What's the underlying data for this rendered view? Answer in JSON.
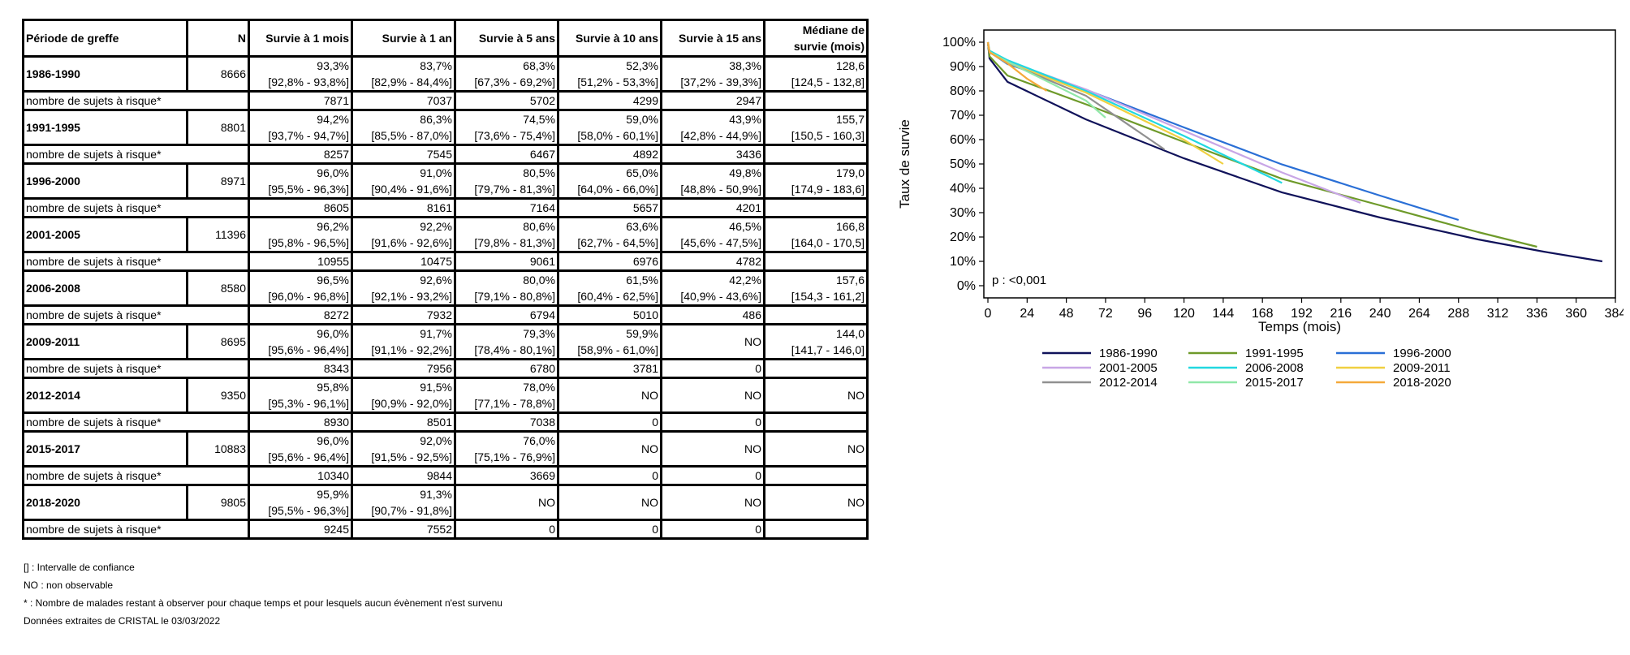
{
  "table": {
    "headers": [
      "Période de greffe",
      "N",
      "Survie à 1 mois",
      "Survie à 1 an",
      "Survie à 5 ans",
      "Survie à 10 ans",
      "Survie à 15 ans",
      "Médiane de survie (mois)"
    ],
    "risk_label": "nombre de sujets à risque*",
    "periods": [
      {
        "period": "1986-1990",
        "n": "8666",
        "cells": [
          [
            "93,3%",
            "[92,8% - 93,8%]"
          ],
          [
            "83,7%",
            "[82,9% - 84,4%]"
          ],
          [
            "68,3%",
            "[67,3% - 69,2%]"
          ],
          [
            "52,3%",
            "[51,2% - 53,3%]"
          ],
          [
            "38,3%",
            "[37,2% - 39,3%]"
          ],
          [
            "128,6",
            "[124,5 - 132,8]"
          ]
        ],
        "risk": [
          "7871",
          "7037",
          "5702",
          "4299",
          "2947",
          ""
        ]
      },
      {
        "period": "1991-1995",
        "n": "8801",
        "cells": [
          [
            "94,2%",
            "[93,7% - 94,7%]"
          ],
          [
            "86,3%",
            "[85,5% - 87,0%]"
          ],
          [
            "74,5%",
            "[73,6% - 75,4%]"
          ],
          [
            "59,0%",
            "[58,0% - 60,1%]"
          ],
          [
            "43,9%",
            "[42,8% - 44,9%]"
          ],
          [
            "155,7",
            "[150,5 - 160,3]"
          ]
        ],
        "risk": [
          "8257",
          "7545",
          "6467",
          "4892",
          "3436",
          ""
        ]
      },
      {
        "period": "1996-2000",
        "n": "8971",
        "cells": [
          [
            "96,0%",
            "[95,5% - 96,3%]"
          ],
          [
            "91,0%",
            "[90,4% - 91,6%]"
          ],
          [
            "80,5%",
            "[79,7% - 81,3%]"
          ],
          [
            "65,0%",
            "[64,0% - 66,0%]"
          ],
          [
            "49,8%",
            "[48,8% - 50,9%]"
          ],
          [
            "179,0",
            "[174,9 - 183,6]"
          ]
        ],
        "risk": [
          "8605",
          "8161",
          "7164",
          "5657",
          "4201",
          ""
        ]
      },
      {
        "period": "2001-2005",
        "n": "11396",
        "cells": [
          [
            "96,2%",
            "[95,8% - 96,5%]"
          ],
          [
            "92,2%",
            "[91,6% - 92,6%]"
          ],
          [
            "80,6%",
            "[79,8% - 81,3%]"
          ],
          [
            "63,6%",
            "[62,7% - 64,5%]"
          ],
          [
            "46,5%",
            "[45,6% - 47,5%]"
          ],
          [
            "166,8",
            "[164,0 - 170,5]"
          ]
        ],
        "risk": [
          "10955",
          "10475",
          "9061",
          "6976",
          "4782",
          ""
        ]
      },
      {
        "period": "2006-2008",
        "n": "8580",
        "cells": [
          [
            "96,5%",
            "[96,0% - 96,8%]"
          ],
          [
            "92,6%",
            "[92,1% - 93,2%]"
          ],
          [
            "80,0%",
            "[79,1% - 80,8%]"
          ],
          [
            "61,5%",
            "[60,4% - 62,5%]"
          ],
          [
            "42,2%",
            "[40,9% - 43,6%]"
          ],
          [
            "157,6",
            "[154,3 - 161,2]"
          ]
        ],
        "risk": [
          "8272",
          "7932",
          "6794",
          "5010",
          "486",
          ""
        ]
      },
      {
        "period": "2009-2011",
        "n": "8695",
        "cells": [
          [
            "96,0%",
            "[95,6% - 96,4%]"
          ],
          [
            "91,7%",
            "[91,1% - 92,2%]"
          ],
          [
            "79,3%",
            "[78,4% - 80,1%]"
          ],
          [
            "59,9%",
            "[58,9% - 61,0%]"
          ],
          [
            "NO",
            ""
          ],
          [
            "144,0",
            "[141,7 - 146,0]"
          ]
        ],
        "risk": [
          "8343",
          "7956",
          "6780",
          "3781",
          "0",
          ""
        ]
      },
      {
        "period": "2012-2014",
        "n": "9350",
        "cells": [
          [
            "95,8%",
            "[95,3% - 96,1%]"
          ],
          [
            "91,5%",
            "[90,9% - 92,0%]"
          ],
          [
            "78,0%",
            "[77,1% - 78,8%]"
          ],
          [
            "NO",
            ""
          ],
          [
            "NO",
            ""
          ],
          [
            "NO",
            ""
          ]
        ],
        "risk": [
          "8930",
          "8501",
          "7038",
          "0",
          "0",
          ""
        ]
      },
      {
        "period": "2015-2017",
        "n": "10883",
        "cells": [
          [
            "96,0%",
            "[95,6% - 96,4%]"
          ],
          [
            "92,0%",
            "[91,5% - 92,5%]"
          ],
          [
            "76,0%",
            "[75,1% - 76,9%]"
          ],
          [
            "NO",
            ""
          ],
          [
            "NO",
            ""
          ],
          [
            "NO",
            ""
          ]
        ],
        "risk": [
          "10340",
          "9844",
          "3669",
          "0",
          "0",
          ""
        ]
      },
      {
        "period": "2018-2020",
        "n": "9805",
        "cells": [
          [
            "95,9%",
            "[95,5% - 96,3%]"
          ],
          [
            "91,3%",
            "[90,7% - 91,8%]"
          ],
          [
            "NO",
            ""
          ],
          [
            "NO",
            ""
          ],
          [
            "NO",
            ""
          ],
          [
            "NO",
            ""
          ]
        ],
        "risk": [
          "9245",
          "7552",
          "0",
          "0",
          "0",
          ""
        ]
      }
    ]
  },
  "footnotes": [
    "[] : Intervalle de confiance",
    "NO : non observable",
    "* : Nombre de malades restant à observer pour chaque temps et pour lesquels aucun évènement n'est survenu",
    "Données extraites de CRISTAL le 03/03/2022"
  ],
  "chart_data": {
    "type": "line",
    "xlabel": "Temps (mois)",
    "ylabel": "Taux de survie",
    "annotation": "p : <0,001",
    "xlim": [
      0,
      384
    ],
    "ylim": [
      0,
      100
    ],
    "xticks": [
      "0",
      "24",
      "48",
      "72",
      "96",
      "120",
      "144",
      "168",
      "192",
      "216",
      "240",
      "264",
      "288",
      "312",
      "336",
      "360",
      "384"
    ],
    "yticks": [
      "0%",
      "10%",
      "20%",
      "30%",
      "40%",
      "50%",
      "60%",
      "70%",
      "80%",
      "90%",
      "100%"
    ],
    "legend_position": "bottom",
    "series": [
      {
        "name": "1986-1990",
        "color": "#10125a",
        "x": [
          0,
          1,
          12,
          60,
          120,
          180,
          240,
          300,
          340,
          376
        ],
        "y": [
          100,
          93.3,
          83.7,
          68.3,
          52.3,
          38.3,
          28,
          19,
          14,
          10
        ]
      },
      {
        "name": "1991-1995",
        "color": "#6e9a2a",
        "x": [
          0,
          1,
          12,
          60,
          120,
          180,
          240,
          300,
          336
        ],
        "y": [
          100,
          94.2,
          86.3,
          74.5,
          59,
          43.9,
          33,
          22,
          16
        ]
      },
      {
        "name": "1996-2000",
        "color": "#2a6fd6",
        "x": [
          0,
          1,
          12,
          60,
          120,
          180,
          240,
          288
        ],
        "y": [
          100,
          96,
          91,
          80.5,
          65,
          49.8,
          37,
          27
        ]
      },
      {
        "name": "2001-2005",
        "color": "#c8a6e6",
        "x": [
          0,
          1,
          12,
          60,
          120,
          180,
          228
        ],
        "y": [
          100,
          96.2,
          92.2,
          80.6,
          63.6,
          46.5,
          34
        ]
      },
      {
        "name": "2006-2008",
        "color": "#22d8e0",
        "x": [
          0,
          1,
          12,
          60,
          120,
          180
        ],
        "y": [
          100,
          96.5,
          92.6,
          80,
          61.5,
          42.2
        ]
      },
      {
        "name": "2009-2011",
        "color": "#f0d040",
        "x": [
          0,
          1,
          12,
          60,
          120,
          144
        ],
        "y": [
          100,
          96,
          91.7,
          79.3,
          59.9,
          50
        ]
      },
      {
        "name": "2012-2014",
        "color": "#909090",
        "x": [
          0,
          1,
          12,
          60,
          108
        ],
        "y": [
          100,
          95.8,
          91.5,
          78,
          56
        ]
      },
      {
        "name": "2015-2017",
        "color": "#90e8a8",
        "x": [
          0,
          1,
          12,
          60,
          72
        ],
        "y": [
          100,
          96,
          92,
          76,
          69
        ]
      },
      {
        "name": "2018-2020",
        "color": "#f5a93a",
        "x": [
          0,
          1,
          12,
          24,
          36
        ],
        "y": [
          100,
          95.9,
          91.3,
          85,
          80
        ]
      }
    ]
  }
}
